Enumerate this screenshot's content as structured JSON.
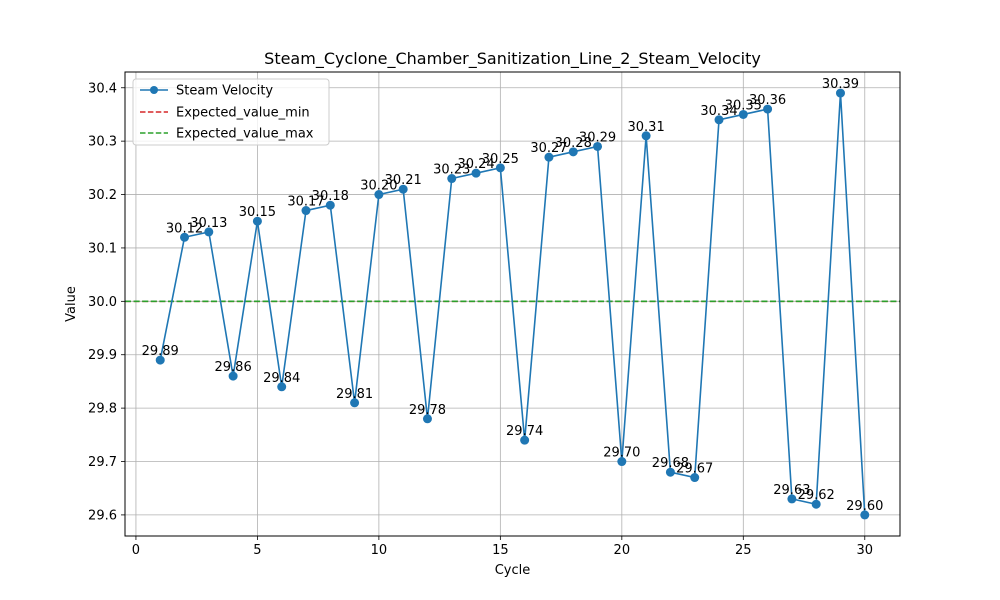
{
  "chart_data": {
    "type": "line",
    "title": "Steam_Cyclone_Chamber_Sanitization_Line_2_Steam_Velocity",
    "xlabel": "Cycle",
    "ylabel": "Value",
    "xlim": [
      -0.45,
      31.45
    ],
    "ylim": [
      29.5605,
      30.4295
    ],
    "xticks": [
      0,
      5,
      10,
      15,
      20,
      25,
      30
    ],
    "yticks": [
      29.6,
      29.7,
      29.8,
      29.9,
      30.0,
      30.1,
      30.2,
      30.3,
      30.4
    ],
    "ytick_labels": [
      "29.6",
      "29.7",
      "29.8",
      "29.9",
      "30.0",
      "30.1",
      "30.2",
      "30.3",
      "30.4"
    ],
    "grid": true,
    "legend_position": "upper-left",
    "x": [
      1,
      2,
      3,
      4,
      5,
      6,
      7,
      8,
      9,
      10,
      11,
      12,
      13,
      14,
      15,
      16,
      17,
      18,
      19,
      20,
      21,
      22,
      23,
      24,
      25,
      26,
      27,
      28,
      29,
      30
    ],
    "series": [
      {
        "name": "Steam Velocity",
        "color": "#1f77b4",
        "marker": "circle",
        "values": [
          29.89,
          30.12,
          30.13,
          29.86,
          30.15,
          29.84,
          30.17,
          30.18,
          29.81,
          30.2,
          30.21,
          29.78,
          30.23,
          30.24,
          30.25,
          29.74,
          30.27,
          30.28,
          30.29,
          29.7,
          30.31,
          29.68,
          29.67,
          30.34,
          30.35,
          30.36,
          29.63,
          29.62,
          30.39,
          29.6
        ],
        "labels": [
          "29.89",
          "30.12",
          "30.13",
          "29.86",
          "30.15",
          "29.84",
          "30.17",
          "30.18",
          "29.81",
          "30.20",
          "30.21",
          "29.78",
          "30.23",
          "30.24",
          "30.25",
          "29.74",
          "30.27",
          "30.28",
          "30.29",
          "29.70",
          "30.31",
          "29.68",
          "29.67",
          "30.34",
          "30.35",
          "30.36",
          "29.63",
          "29.62",
          "30.39",
          "29.60"
        ]
      }
    ],
    "reference_lines": [
      {
        "name": "Expected_value_min",
        "value": 30.0,
        "color": "#d62728",
        "style": "dashed"
      },
      {
        "name": "Expected_value_max",
        "value": 30.0,
        "color": "#2ca02c",
        "style": "dashed"
      }
    ]
  }
}
